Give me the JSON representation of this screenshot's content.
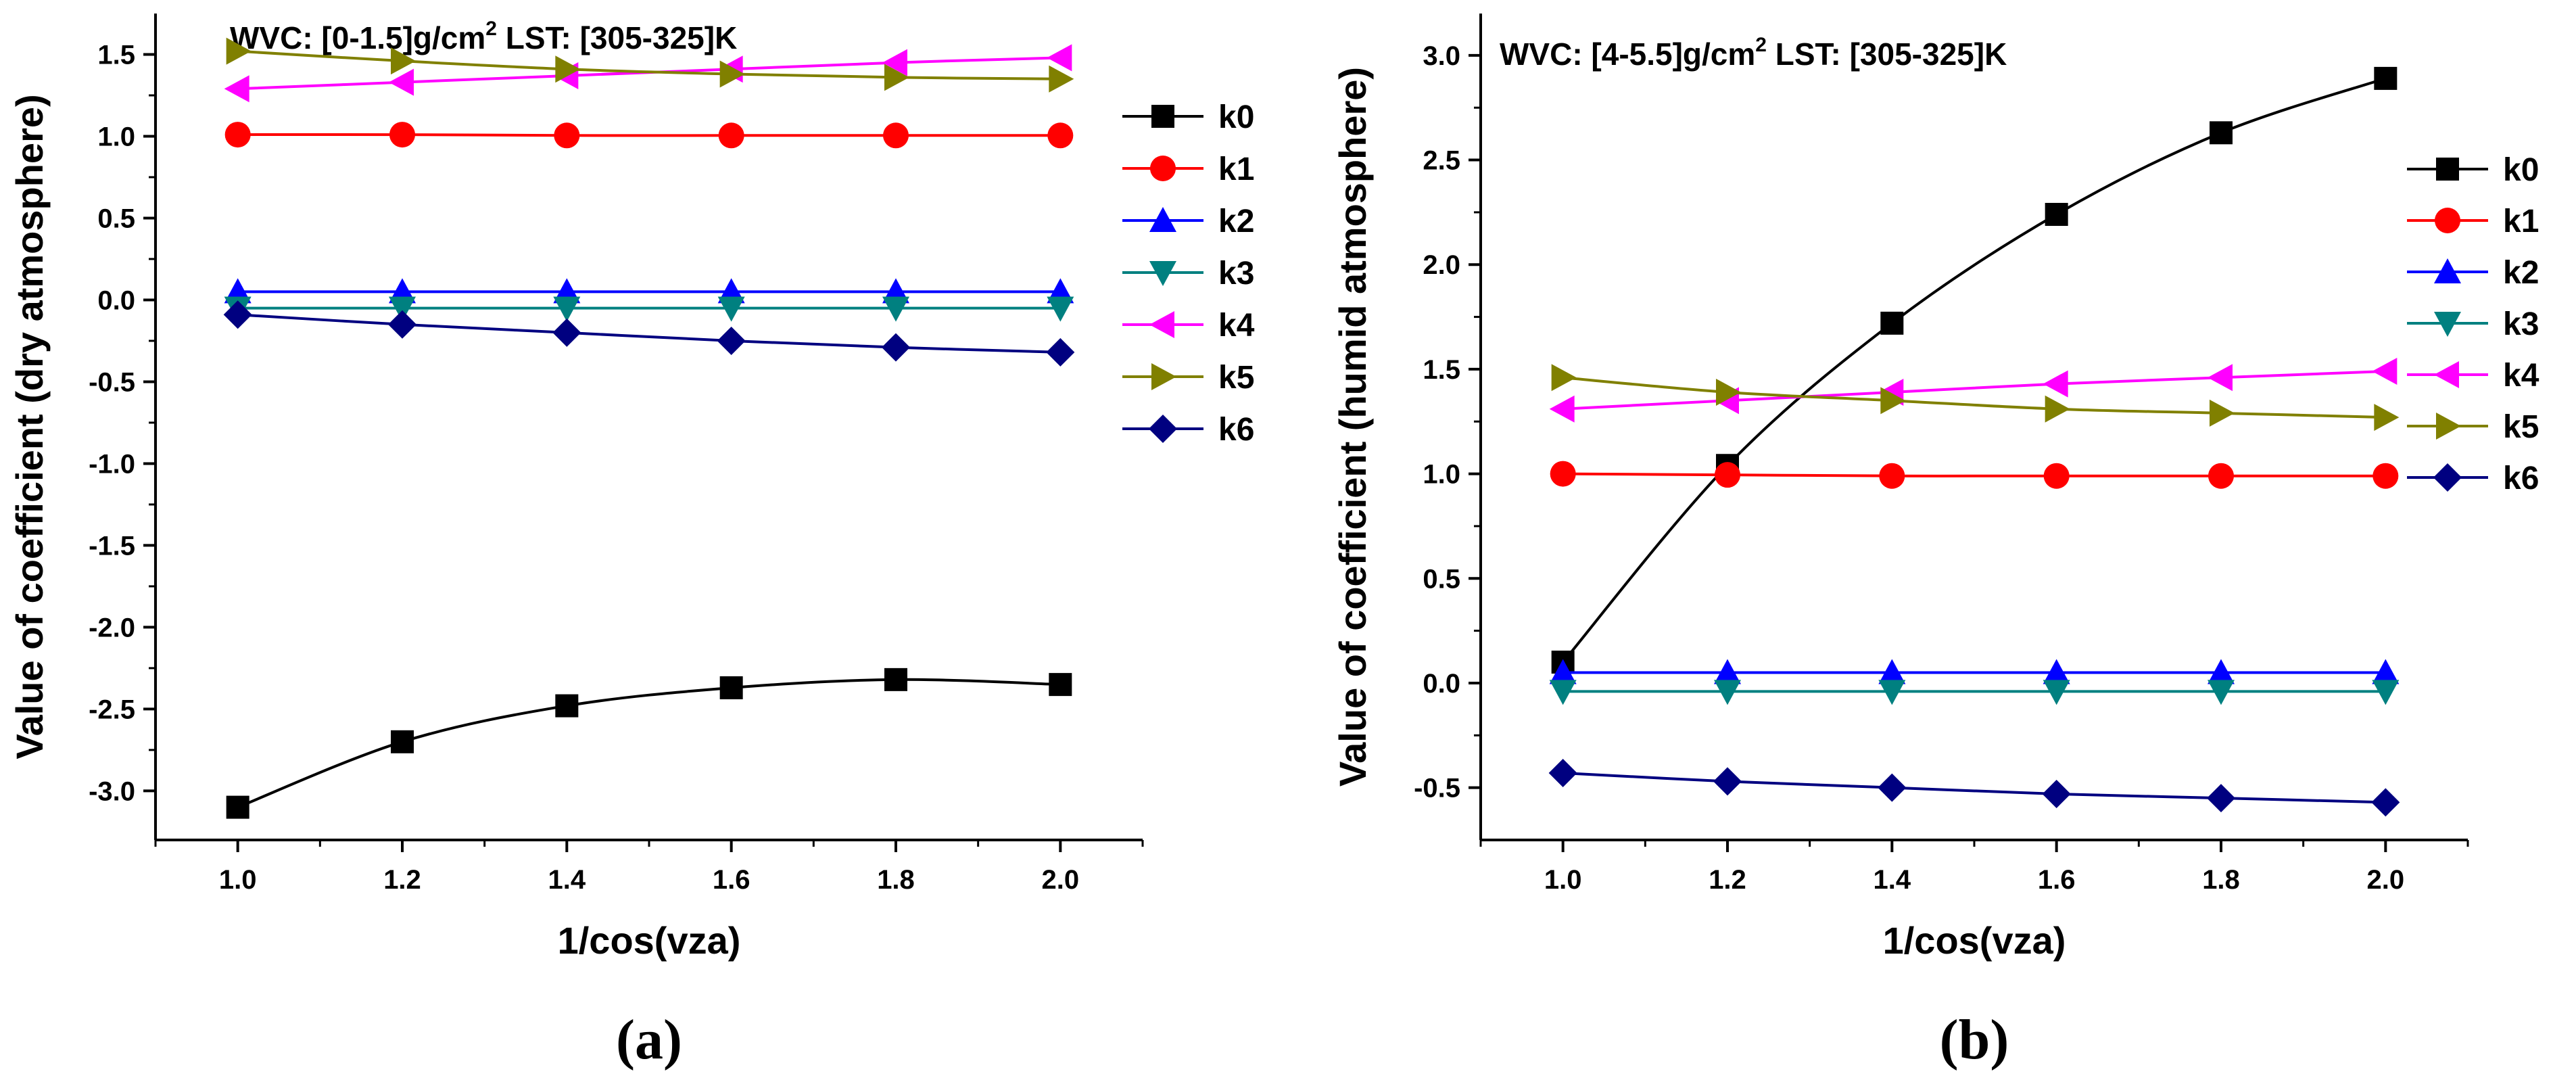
{
  "figure": {
    "captions": [
      "(a)",
      "(b)"
    ]
  },
  "chart_data": [
    {
      "panel": "a",
      "type": "line",
      "title_prefix": "WVC: [0-1.5]g/cm",
      "title_sup": "2",
      "title_suffix": " LST: [305-325]K",
      "xlabel": "1/cos(vza)",
      "ylabel": "Value of coefficient (dry atmosphere)",
      "caption": "(a)",
      "xlim": [
        0.9,
        2.1
      ],
      "ylim": [
        -3.3,
        1.75
      ],
      "xticks": [
        1.0,
        1.2,
        1.4,
        1.6,
        1.8,
        2.0
      ],
      "xtick_labels": [
        "1.0",
        "1.2",
        "1.4",
        "1.6",
        "1.8",
        "2.0"
      ],
      "yticks": [
        -3.0,
        -2.5,
        -2.0,
        -1.5,
        -1.0,
        -0.5,
        0.0,
        0.5,
        1.0,
        1.5
      ],
      "ytick_labels": [
        "-3.0",
        "-2.5",
        "-2.0",
        "-1.5",
        "-1.0",
        "-0.5",
        "0.0",
        "0.5",
        "1.0",
        "1.5"
      ],
      "x": [
        1.0,
        1.2,
        1.4,
        1.6,
        1.8,
        2.0
      ],
      "series": [
        {
          "name": "k0",
          "marker": "square",
          "color": "#000000",
          "values": [
            -3.1,
            -2.7,
            -2.48,
            -2.37,
            -2.32,
            -2.35
          ]
        },
        {
          "name": "k1",
          "marker": "circle",
          "color": "#ff0000",
          "values": [
            1.01,
            1.01,
            1.005,
            1.005,
            1.005,
            1.005
          ]
        },
        {
          "name": "k2",
          "marker": "triangle-up",
          "color": "#0000ff",
          "values": [
            0.05,
            0.05,
            0.05,
            0.05,
            0.05,
            0.05
          ]
        },
        {
          "name": "k3",
          "marker": "triangle-down",
          "color": "#008080",
          "values": [
            -0.05,
            -0.05,
            -0.05,
            -0.05,
            -0.05,
            -0.05
          ]
        },
        {
          "name": "k4",
          "marker": "triangle-left",
          "color": "#ff00ff",
          "values": [
            1.29,
            1.33,
            1.37,
            1.41,
            1.45,
            1.48
          ]
        },
        {
          "name": "k5",
          "marker": "triangle-right",
          "color": "#808000",
          "values": [
            1.52,
            1.46,
            1.41,
            1.38,
            1.36,
            1.35
          ]
        },
        {
          "name": "k6",
          "marker": "diamond",
          "color": "#000080",
          "values": [
            -0.09,
            -0.15,
            -0.2,
            -0.25,
            -0.29,
            -0.32
          ]
        }
      ]
    },
    {
      "panel": "b",
      "type": "line",
      "title_prefix": "WVC: [4-5.5]g/cm",
      "title_sup": "2",
      "title_suffix": " LST: [305-325]K",
      "xlabel": "1/cos(vza)",
      "ylabel": "Value of coefficient (humid atmosphere)",
      "caption": "(b)",
      "xlim": [
        0.9,
        2.1
      ],
      "ylim": [
        -0.75,
        3.2
      ],
      "xticks": [
        1.0,
        1.2,
        1.4,
        1.6,
        1.8,
        2.0
      ],
      "xtick_labels": [
        "1.0",
        "1.2",
        "1.4",
        "1.6",
        "1.8",
        "2.0"
      ],
      "yticks": [
        -0.5,
        0.0,
        0.5,
        1.0,
        1.5,
        2.0,
        2.5,
        3.0
      ],
      "ytick_labels": [
        "-0.5",
        "0.0",
        "0.5",
        "1.0",
        "1.5",
        "2.0",
        "2.5",
        "3.0"
      ],
      "x": [
        1.0,
        1.2,
        1.4,
        1.6,
        1.8,
        2.0
      ],
      "series": [
        {
          "name": "k0",
          "marker": "square",
          "color": "#000000",
          "values": [
            0.1,
            1.04,
            1.72,
            2.24,
            2.63,
            2.89
          ]
        },
        {
          "name": "k1",
          "marker": "circle",
          "color": "#ff0000",
          "values": [
            1.0,
            0.995,
            0.99,
            0.99,
            0.99,
            0.99
          ]
        },
        {
          "name": "k2",
          "marker": "triangle-up",
          "color": "#0000ff",
          "values": [
            0.05,
            0.05,
            0.05,
            0.05,
            0.05,
            0.05
          ]
        },
        {
          "name": "k3",
          "marker": "triangle-down",
          "color": "#008080",
          "values": [
            -0.04,
            -0.04,
            -0.04,
            -0.04,
            -0.04,
            -0.04
          ]
        },
        {
          "name": "k4",
          "marker": "triangle-left",
          "color": "#ff00ff",
          "values": [
            1.31,
            1.35,
            1.39,
            1.43,
            1.46,
            1.49
          ]
        },
        {
          "name": "k5",
          "marker": "triangle-right",
          "color": "#808000",
          "values": [
            1.46,
            1.39,
            1.35,
            1.31,
            1.29,
            1.27
          ]
        },
        {
          "name": "k6",
          "marker": "diamond",
          "color": "#000080",
          "values": [
            -0.43,
            -0.47,
            -0.5,
            -0.53,
            -0.55,
            -0.57
          ]
        }
      ]
    }
  ]
}
